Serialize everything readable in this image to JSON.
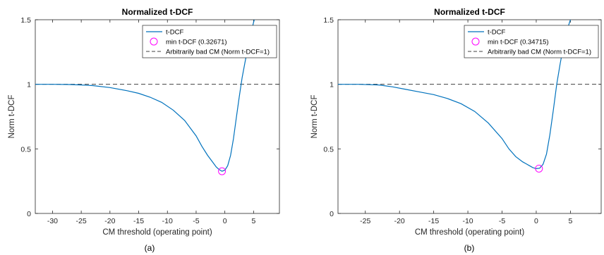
{
  "figure": {
    "panel_labels": [
      "(a)",
      "(b)"
    ]
  },
  "colors": {
    "curve": "#0072BD",
    "marker": "#FF00FF",
    "reference": "#404040",
    "axes": "#262626"
  },
  "chart_data": [
    {
      "type": "line",
      "title": "Normalized t-DCF",
      "xlabel": "CM threshold (operating point)",
      "ylabel": "Norm t-DCF",
      "xlim": [
        -33,
        9.5
      ],
      "ylim": [
        0,
        1.5
      ],
      "xticks": [
        -30,
        -25,
        -20,
        -15,
        -10,
        -5,
        0,
        5
      ],
      "yticks": [
        0,
        0.5,
        1,
        1.5
      ],
      "grid": false,
      "legend_position": "top-right",
      "series": [
        {
          "name": "t-DCF",
          "kind": "line",
          "x": [
            -33,
            -30,
            -27,
            -25,
            -23,
            -20,
            -17,
            -15,
            -13,
            -11,
            -9,
            -7,
            -5,
            -4,
            -3,
            -2,
            -1.5,
            -1,
            -0.5,
            0,
            0.5,
            1,
            1.5,
            2,
            2.5,
            3,
            3.5,
            4,
            4.5,
            5,
            5.5
          ],
          "y": [
            1.0,
            1.0,
            0.998,
            0.995,
            0.99,
            0.975,
            0.95,
            0.93,
            0.9,
            0.86,
            0.8,
            0.72,
            0.6,
            0.52,
            0.45,
            0.39,
            0.36,
            0.34,
            0.327,
            0.335,
            0.37,
            0.45,
            0.58,
            0.74,
            0.9,
            1.05,
            1.17,
            1.28,
            1.39,
            1.48,
            1.56
          ]
        },
        {
          "name": "min t-DCF (0.32671)",
          "kind": "marker",
          "x": [
            -0.5
          ],
          "y": [
            0.32671
          ]
        },
        {
          "name": "Arbitrarily bad CM (Norm t-DCF=1)",
          "kind": "reference",
          "y": 1
        }
      ]
    },
    {
      "type": "line",
      "title": "Normalized t-DCF",
      "xlabel": "CM threshold (operating point)",
      "ylabel": "Norm t-DCF",
      "xlim": [
        -29,
        9.5
      ],
      "ylim": [
        0,
        1.5
      ],
      "xticks": [
        -25,
        -20,
        -15,
        -10,
        -5,
        0,
        5
      ],
      "yticks": [
        0,
        0.5,
        1,
        1.5
      ],
      "grid": false,
      "legend_position": "top-right",
      "series": [
        {
          "name": "t-DCF",
          "kind": "line",
          "x": [
            -29,
            -26,
            -23,
            -21,
            -19,
            -17,
            -15,
            -13,
            -11,
            -9,
            -7,
            -5,
            -4,
            -3,
            -2,
            -1.5,
            -1,
            -0.5,
            0,
            0.5,
            1,
            1.5,
            2,
            2.5,
            3,
            3.5,
            4,
            4.5,
            5,
            5.5
          ],
          "y": [
            1.0,
            1.0,
            0.995,
            0.98,
            0.96,
            0.94,
            0.92,
            0.89,
            0.85,
            0.79,
            0.7,
            0.58,
            0.5,
            0.44,
            0.4,
            0.385,
            0.37,
            0.355,
            0.347,
            0.35,
            0.38,
            0.46,
            0.61,
            0.8,
            1.0,
            1.16,
            1.3,
            1.42,
            1.5,
            1.56
          ]
        },
        {
          "name": "min t-DCF (0.34715)",
          "kind": "marker",
          "x": [
            0.4
          ],
          "y": [
            0.34715
          ]
        },
        {
          "name": "Arbitrarily bad CM (Norm t-DCF=1)",
          "kind": "reference",
          "y": 1
        }
      ]
    }
  ]
}
